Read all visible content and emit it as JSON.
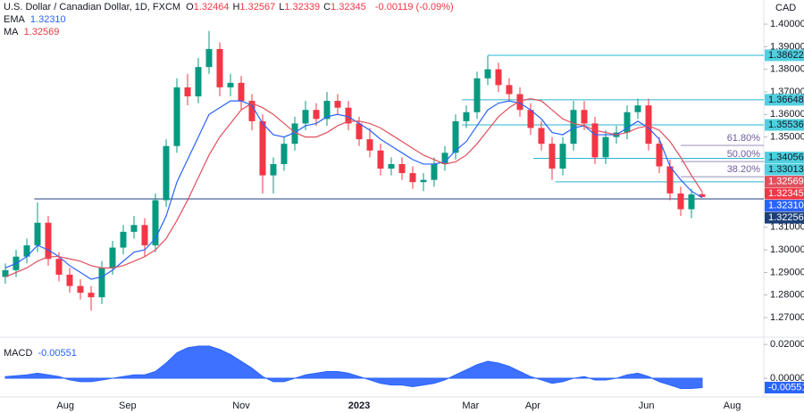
{
  "symbol": "U.S. Dollar / Canadian Dollar, 1D, FXCM",
  "ohlc_header": [
    {
      "letter": "O",
      "value": 1.32464
    },
    {
      "letter": "H",
      "value": 1.32567
    },
    {
      "letter": "L",
      "value": 1.32339
    },
    {
      "letter": "C",
      "value": 1.32345
    }
  ],
  "change_label": "-0.00119 (-0.09%)",
  "currency": "CAD",
  "chart_data": {
    "type": "candlestick",
    "xlim": [
      -0.5,
      70.75
    ],
    "xticks": [
      {
        "value": 5.6,
        "label": "Aug"
      },
      {
        "value": 11.4,
        "label": "Sep"
      },
      {
        "value": 22,
        "label": "Nov"
      },
      {
        "value": 33,
        "label": "2023"
      },
      {
        "value": 43.4,
        "label": "Mar"
      },
      {
        "value": 49.2,
        "label": "Apr"
      },
      {
        "value": 59.8,
        "label": "Jun"
      },
      {
        "value": 67.8,
        "label": "Aug"
      }
    ],
    "ylim": [
      1.2625,
      1.4107
    ],
    "yticks": [
      {
        "value": 1.4,
        "label": "1.40000"
      },
      {
        "value": 1.39,
        "label": "1.39000"
      },
      {
        "value": 1.38,
        "label": "1.38000"
      },
      {
        "value": 1.37,
        "label": "1.37000"
      },
      {
        "value": 1.36,
        "label": "1.36000"
      },
      {
        "value": 1.35,
        "label": "1.35000"
      },
      {
        "value": 1.31,
        "label": "1.31000"
      },
      {
        "value": 1.3,
        "label": "1.30000"
      },
      {
        "value": 1.29,
        "label": "1.29000"
      },
      {
        "value": 1.28,
        "label": "1.28000"
      },
      {
        "value": 1.27,
        "label": "1.27000"
      }
    ],
    "colors": {
      "up": "#089981",
      "down": "#f23645"
    },
    "ohlc": [
      [
        1.288,
        1.294,
        1.285,
        1.291
      ],
      [
        1.291,
        1.3,
        1.288,
        1.297
      ],
      [
        1.297,
        1.305,
        1.294,
        1.302
      ],
      [
        1.302,
        1.321,
        1.299,
        1.312
      ],
      [
        1.312,
        1.315,
        1.293,
        1.296
      ],
      [
        1.296,
        1.299,
        1.286,
        1.289
      ],
      [
        1.289,
        1.292,
        1.281,
        1.284
      ],
      [
        1.284,
        1.287,
        1.278,
        1.281
      ],
      [
        1.281,
        1.284,
        1.273,
        1.279
      ],
      [
        1.279,
        1.295,
        1.276,
        1.292
      ],
      [
        1.292,
        1.304,
        1.289,
        1.301
      ],
      [
        1.301,
        1.311,
        1.298,
        1.308
      ],
      [
        1.308,
        1.315,
        1.305,
        1.311
      ],
      [
        1.311,
        1.314,
        1.297,
        1.302
      ],
      [
        1.302,
        1.325,
        1.299,
        1.322
      ],
      [
        1.322,
        1.349,
        1.319,
        1.346
      ],
      [
        1.346,
        1.376,
        1.343,
        1.372
      ],
      [
        1.372,
        1.378,
        1.364,
        1.368
      ],
      [
        1.368,
        1.385,
        1.365,
        1.381
      ],
      [
        1.381,
        1.397,
        1.378,
        1.389
      ],
      [
        1.389,
        1.392,
        1.368,
        1.372
      ],
      [
        1.372,
        1.378,
        1.368,
        1.374
      ],
      [
        1.374,
        1.377,
        1.362,
        1.366
      ],
      [
        1.366,
        1.369,
        1.353,
        1.357
      ],
      [
        1.357,
        1.36,
        1.325,
        1.333
      ],
      [
        1.333,
        1.341,
        1.325,
        1.338
      ],
      [
        1.338,
        1.35,
        1.335,
        1.347
      ],
      [
        1.347,
        1.359,
        1.344,
        1.356
      ],
      [
        1.356,
        1.366,
        1.353,
        1.362
      ],
      [
        1.362,
        1.365,
        1.355,
        1.358
      ],
      [
        1.358,
        1.37,
        1.355,
        1.366
      ],
      [
        1.366,
        1.369,
        1.36,
        1.363
      ],
      [
        1.363,
        1.366,
        1.353,
        1.356
      ],
      [
        1.356,
        1.359,
        1.346,
        1.349
      ],
      [
        1.349,
        1.354,
        1.341,
        1.344
      ],
      [
        1.344,
        1.347,
        1.333,
        1.336
      ],
      [
        1.336,
        1.341,
        1.333,
        1.338
      ],
      [
        1.338,
        1.341,
        1.331,
        1.334
      ],
      [
        1.334,
        1.337,
        1.327,
        1.33
      ],
      [
        1.33,
        1.334,
        1.326,
        1.331
      ],
      [
        1.331,
        1.341,
        1.328,
        1.338
      ],
      [
        1.338,
        1.346,
        1.335,
        1.343
      ],
      [
        1.343,
        1.36,
        1.34,
        1.357
      ],
      [
        1.357,
        1.364,
        1.354,
        1.361
      ],
      [
        1.361,
        1.379,
        1.358,
        1.376
      ],
      [
        1.376,
        1.386,
        1.373,
        1.38
      ],
      [
        1.38,
        1.383,
        1.37,
        1.373
      ],
      [
        1.373,
        1.376,
        1.366,
        1.369
      ],
      [
        1.369,
        1.372,
        1.359,
        1.362
      ],
      [
        1.362,
        1.365,
        1.351,
        1.354
      ],
      [
        1.354,
        1.357,
        1.344,
        1.347
      ],
      [
        1.347,
        1.35,
        1.331,
        1.336
      ],
      [
        1.336,
        1.35,
        1.333,
        1.347
      ],
      [
        1.347,
        1.366,
        1.344,
        1.362
      ],
      [
        1.362,
        1.366,
        1.353,
        1.356
      ],
      [
        1.356,
        1.359,
        1.338,
        1.341
      ],
      [
        1.341,
        1.353,
        1.338,
        1.35
      ],
      [
        1.35,
        1.355,
        1.347,
        1.352
      ],
      [
        1.352,
        1.364,
        1.349,
        1.361
      ],
      [
        1.361,
        1.367,
        1.358,
        1.364
      ],
      [
        1.364,
        1.367,
        1.344,
        1.347
      ],
      [
        1.347,
        1.35,
        1.334,
        1.337
      ],
      [
        1.337,
        1.34,
        1.322,
        1.325
      ],
      [
        1.325,
        1.328,
        1.315,
        1.318
      ],
      [
        1.318,
        1.327,
        1.314,
        1.3246
      ],
      [
        1.32464,
        1.32567,
        1.32339,
        1.32345
      ]
    ],
    "indicators": [
      {
        "name": "EMA",
        "label": "1.32310",
        "color": "#2962ff",
        "values": [
          1.292,
          1.294,
          1.297,
          1.302,
          1.3,
          1.297,
          1.293,
          1.29,
          1.287,
          1.288,
          1.291,
          1.295,
          1.299,
          1.3,
          1.305,
          1.315,
          1.33,
          1.34,
          1.35,
          1.36,
          1.363,
          1.366,
          1.366,
          1.364,
          1.356,
          1.351,
          1.35,
          1.352,
          1.355,
          1.356,
          1.359,
          1.36,
          1.359,
          1.356,
          1.353,
          1.349,
          1.346,
          1.343,
          1.34,
          1.338,
          1.338,
          1.339,
          1.344,
          1.348,
          1.355,
          1.362,
          1.365,
          1.366,
          1.365,
          1.362,
          1.358,
          1.352,
          1.351,
          1.354,
          1.355,
          1.351,
          1.351,
          1.351,
          1.354,
          1.357,
          1.354,
          1.349,
          1.337,
          1.331,
          1.326,
          1.3231
        ]
      },
      {
        "name": "MA",
        "label": "1.32569",
        "color": "#e0505e",
        "values": [
          1.288,
          1.29,
          1.292,
          1.295,
          1.297,
          1.297,
          1.296,
          1.295,
          1.293,
          1.292,
          1.292,
          1.293,
          1.295,
          1.297,
          1.3,
          1.305,
          1.313,
          1.322,
          1.332,
          1.342,
          1.35,
          1.356,
          1.362,
          1.365,
          1.363,
          1.36,
          1.356,
          1.352,
          1.35,
          1.35,
          1.352,
          1.355,
          1.357,
          1.357,
          1.356,
          1.354,
          1.351,
          1.348,
          1.345,
          1.342,
          1.34,
          1.338,
          1.339,
          1.342,
          1.347,
          1.353,
          1.359,
          1.363,
          1.366,
          1.367,
          1.366,
          1.362,
          1.358,
          1.356,
          1.355,
          1.353,
          1.352,
          1.351,
          1.352,
          1.354,
          1.355,
          1.353,
          1.348,
          1.341,
          1.333,
          1.32569
        ]
      }
    ],
    "levels": [
      {
        "value": 1.38622,
        "label": "1.38622",
        "from": 45,
        "color": "#26b5cc"
      },
      {
        "value": 1.36648,
        "label": "1.36648",
        "from": 42.6,
        "color": "#26b5cc"
      },
      {
        "value": 1.35536,
        "label": "1.35536",
        "from": 42.6,
        "color": "#26b5cc"
      },
      {
        "value": 1.34056,
        "label": "1.34056",
        "from": 49.25,
        "color": "#26b5cc"
      },
      {
        "value": 1.33013,
        "label": "1.33013",
        "from": 51.3,
        "color": "#26b5cc"
      },
      {
        "value": 1.32256,
        "label": "1.32256",
        "from": 2.7,
        "color": "#1c3f78"
      }
    ],
    "fib_levels": [
      {
        "label": "61.80%",
        "value": 1.3463,
        "from": 63
      },
      {
        "label": "50.00%",
        "value": 1.3391,
        "from": 63
      },
      {
        "label": "38.20%",
        "value": 1.3324,
        "from": 63
      }
    ],
    "macd": {
      "name": "MACD",
      "label": "-0.00551",
      "color": "#2962ff",
      "ylim": [
        -0.0084,
        0.0232
      ],
      "yticks": [
        {
          "value": 0.02,
          "label": "0.02000"
        },
        {
          "value": 0,
          "label": "0.00000"
        }
      ],
      "values": [
        0.001,
        0.0015,
        0.002,
        0.003,
        0.002,
        0.001,
        -0.001,
        -0.002,
        -0.002,
        -0.001,
        0,
        0.001,
        0.002,
        0.002,
        0.004,
        0.009,
        0.015,
        0.018,
        0.019,
        0.019,
        0.017,
        0.014,
        0.01,
        0.006,
        0.001,
        -0.002,
        -0.002,
        0,
        0.002,
        0.003,
        0.004,
        0.004,
        0.003,
        0.001,
        -0.001,
        -0.003,
        -0.004,
        -0.004,
        -0.005,
        -0.004,
        -0.003,
        -0.001,
        0.002,
        0.005,
        0.008,
        0.01,
        0.009,
        0.007,
        0.004,
        0.001,
        -0.001,
        -0.003,
        -0.002,
        0,
        0.001,
        -0.001,
        -0.001,
        0,
        0.002,
        0.003,
        0.001,
        -0.002,
        -0.004,
        -0.006,
        -0.006,
        -0.00551
      ]
    }
  }
}
